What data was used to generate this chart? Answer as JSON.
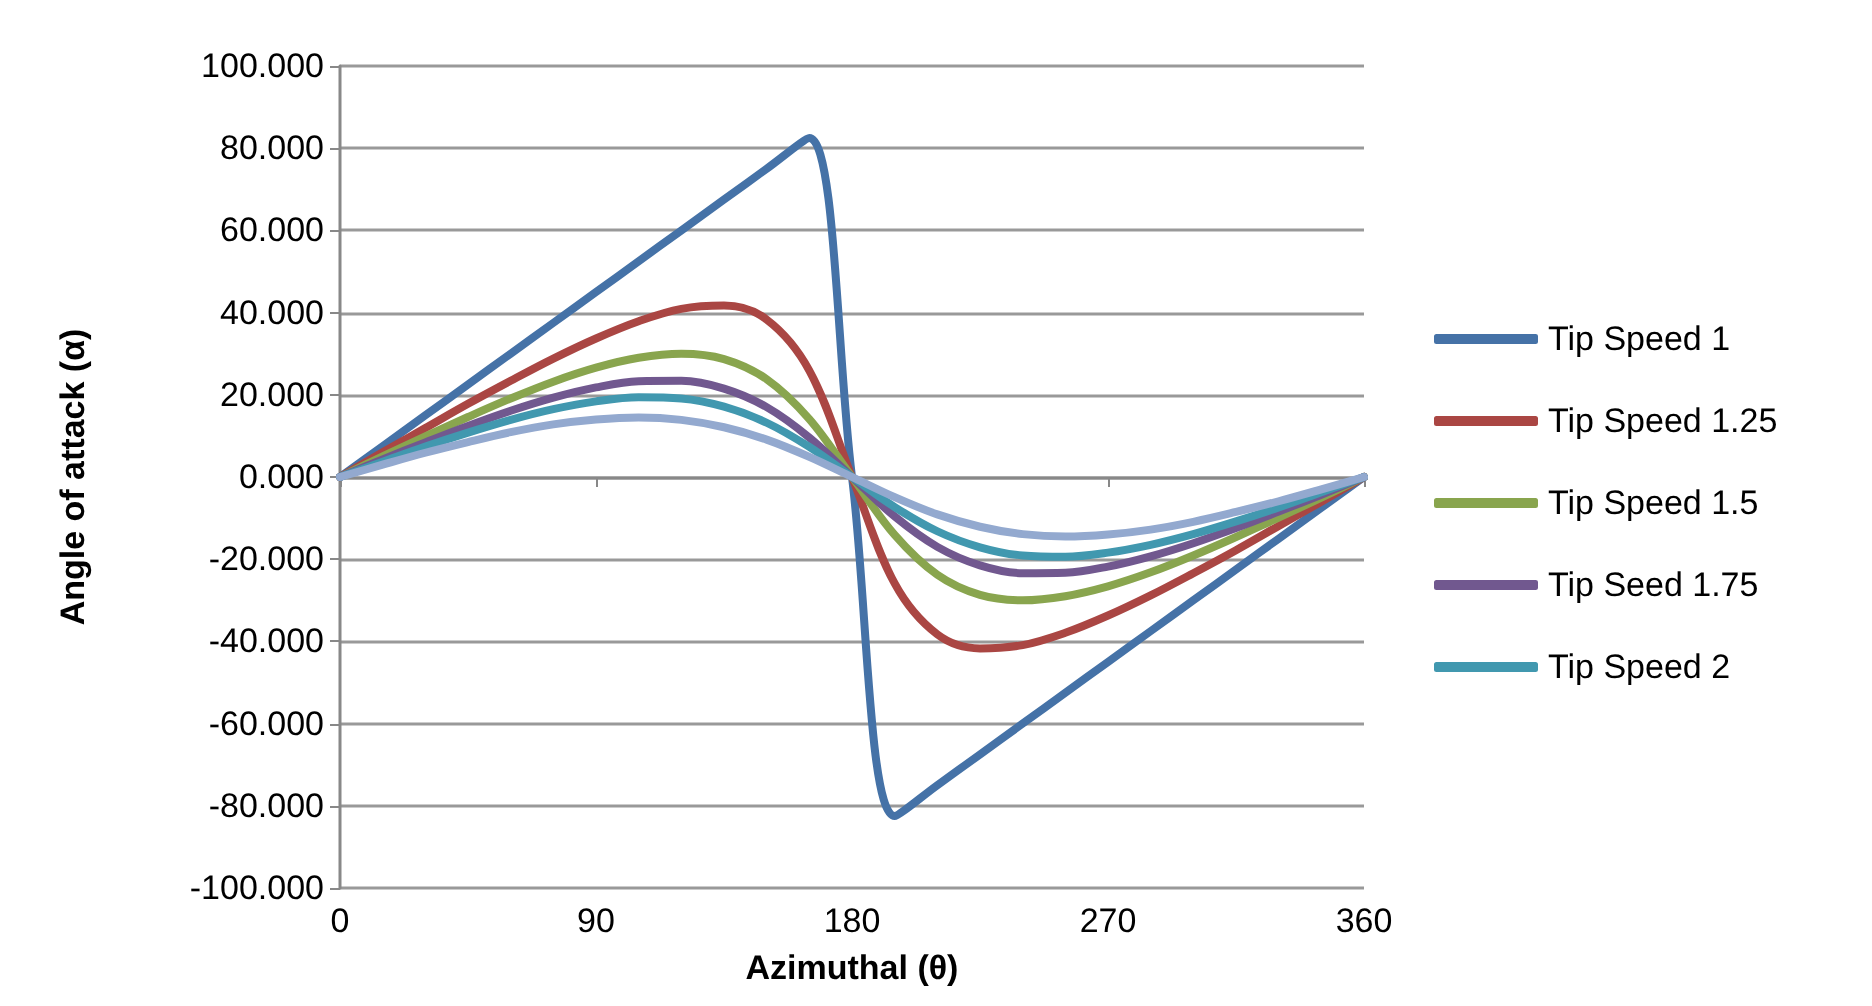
{
  "chart_data": {
    "type": "line",
    "xlabel": "Azimuthal (θ)",
    "ylabel": "Angle of attack (α)",
    "x": [
      0,
      15,
      30,
      45,
      60,
      75,
      90,
      105,
      120,
      135,
      150,
      165,
      180,
      195,
      210,
      225,
      240,
      255,
      270,
      285,
      300,
      315,
      330,
      345,
      360
    ],
    "series": [
      {
        "name": "Tip Speed 1",
        "color": "#4572a7",
        "values": [
          0,
          7.5,
          15,
          22.5,
          30,
          37.5,
          45,
          52.5,
          60,
          67.5,
          75,
          82.5,
          0,
          -82.5,
          -75,
          -67.5,
          -60,
          -52.5,
          -45,
          -37.5,
          -30,
          -22.5,
          -15,
          -7.5,
          0
        ]
      },
      {
        "name": "Tip Speed 1.25",
        "color": "#aa4643",
        "values": [
          0,
          6.0,
          11.9,
          17.8,
          23.4,
          28.8,
          33.7,
          37.9,
          40.9,
          41.7,
          38.3,
          25.9,
          0,
          -25.9,
          -38.3,
          -41.7,
          -40.9,
          -37.9,
          -33.7,
          -28.8,
          -23.4,
          -17.8,
          -11.9,
          -6.0,
          0
        ]
      },
      {
        "name": "Tip Speed 1.5",
        "color": "#89a54e",
        "values": [
          0,
          5.0,
          9.9,
          14.6,
          19.1,
          23.2,
          26.6,
          29.0,
          30.0,
          28.7,
          23.8,
          14.1,
          0,
          -14.1,
          -23.8,
          -28.7,
          -30.0,
          -29.0,
          -26.6,
          -23.2,
          -19.1,
          -14.6,
          -9.9,
          -5.0,
          0
        ]
      },
      {
        "name": "Tip Seed 1.75",
        "color": "#71588f",
        "values": [
          0,
          4.3,
          8.4,
          12.4,
          16.1,
          19.3,
          21.8,
          23.3,
          23.4,
          21.5,
          17.0,
          9.6,
          0,
          -9.6,
          -17.0,
          -21.5,
          -23.4,
          -23.3,
          -21.8,
          -19.3,
          -16.1,
          -12.4,
          -8.4,
          -4.3,
          0
        ]
      },
      {
        "name": "Tip Speed 2",
        "color": "#4198af",
        "values": [
          0,
          3.7,
          7.4,
          10.8,
          13.9,
          16.5,
          18.4,
          19.4,
          19.1,
          17.1,
          13.2,
          7.3,
          0,
          -7.3,
          -13.2,
          -17.1,
          -19.1,
          -19.4,
          -18.4,
          -16.5,
          -13.9,
          -10.8,
          -7.4,
          -3.7,
          0
        ]
      },
      {
        "color": "#93a9cf",
        "values": [
          0,
          3.0,
          5.9,
          8.5,
          10.9,
          12.8,
          14.0,
          14.5,
          13.9,
          12.1,
          9.1,
          4.9,
          0,
          -4.9,
          -9.1,
          -12.1,
          -13.9,
          -14.5,
          -14.0,
          -12.8,
          -10.9,
          -8.5,
          -5.9,
          -3.0,
          0
        ]
      }
    ],
    "xlim": [
      0,
      360
    ],
    "xticks": [
      0,
      90,
      180,
      270,
      360
    ],
    "ylim": [
      -100,
      100
    ],
    "yticks": [
      {
        "value": -100,
        "label": "-100.000"
      },
      {
        "value": -80,
        "label": "-80.000"
      },
      {
        "value": -60,
        "label": "-60.000"
      },
      {
        "value": -40,
        "label": "-40.000"
      },
      {
        "value": -20,
        "label": "-20.000"
      },
      {
        "value": 0,
        "label": "0.000"
      },
      {
        "value": 20,
        "label": "20.000"
      },
      {
        "value": 40,
        "label": "40.000"
      },
      {
        "value": 60,
        "label": "60.000"
      },
      {
        "value": 80,
        "label": "80.000"
      },
      {
        "value": 100,
        "label": "100.000"
      }
    ],
    "grid": "y",
    "legend": "right",
    "marker": "none"
  }
}
